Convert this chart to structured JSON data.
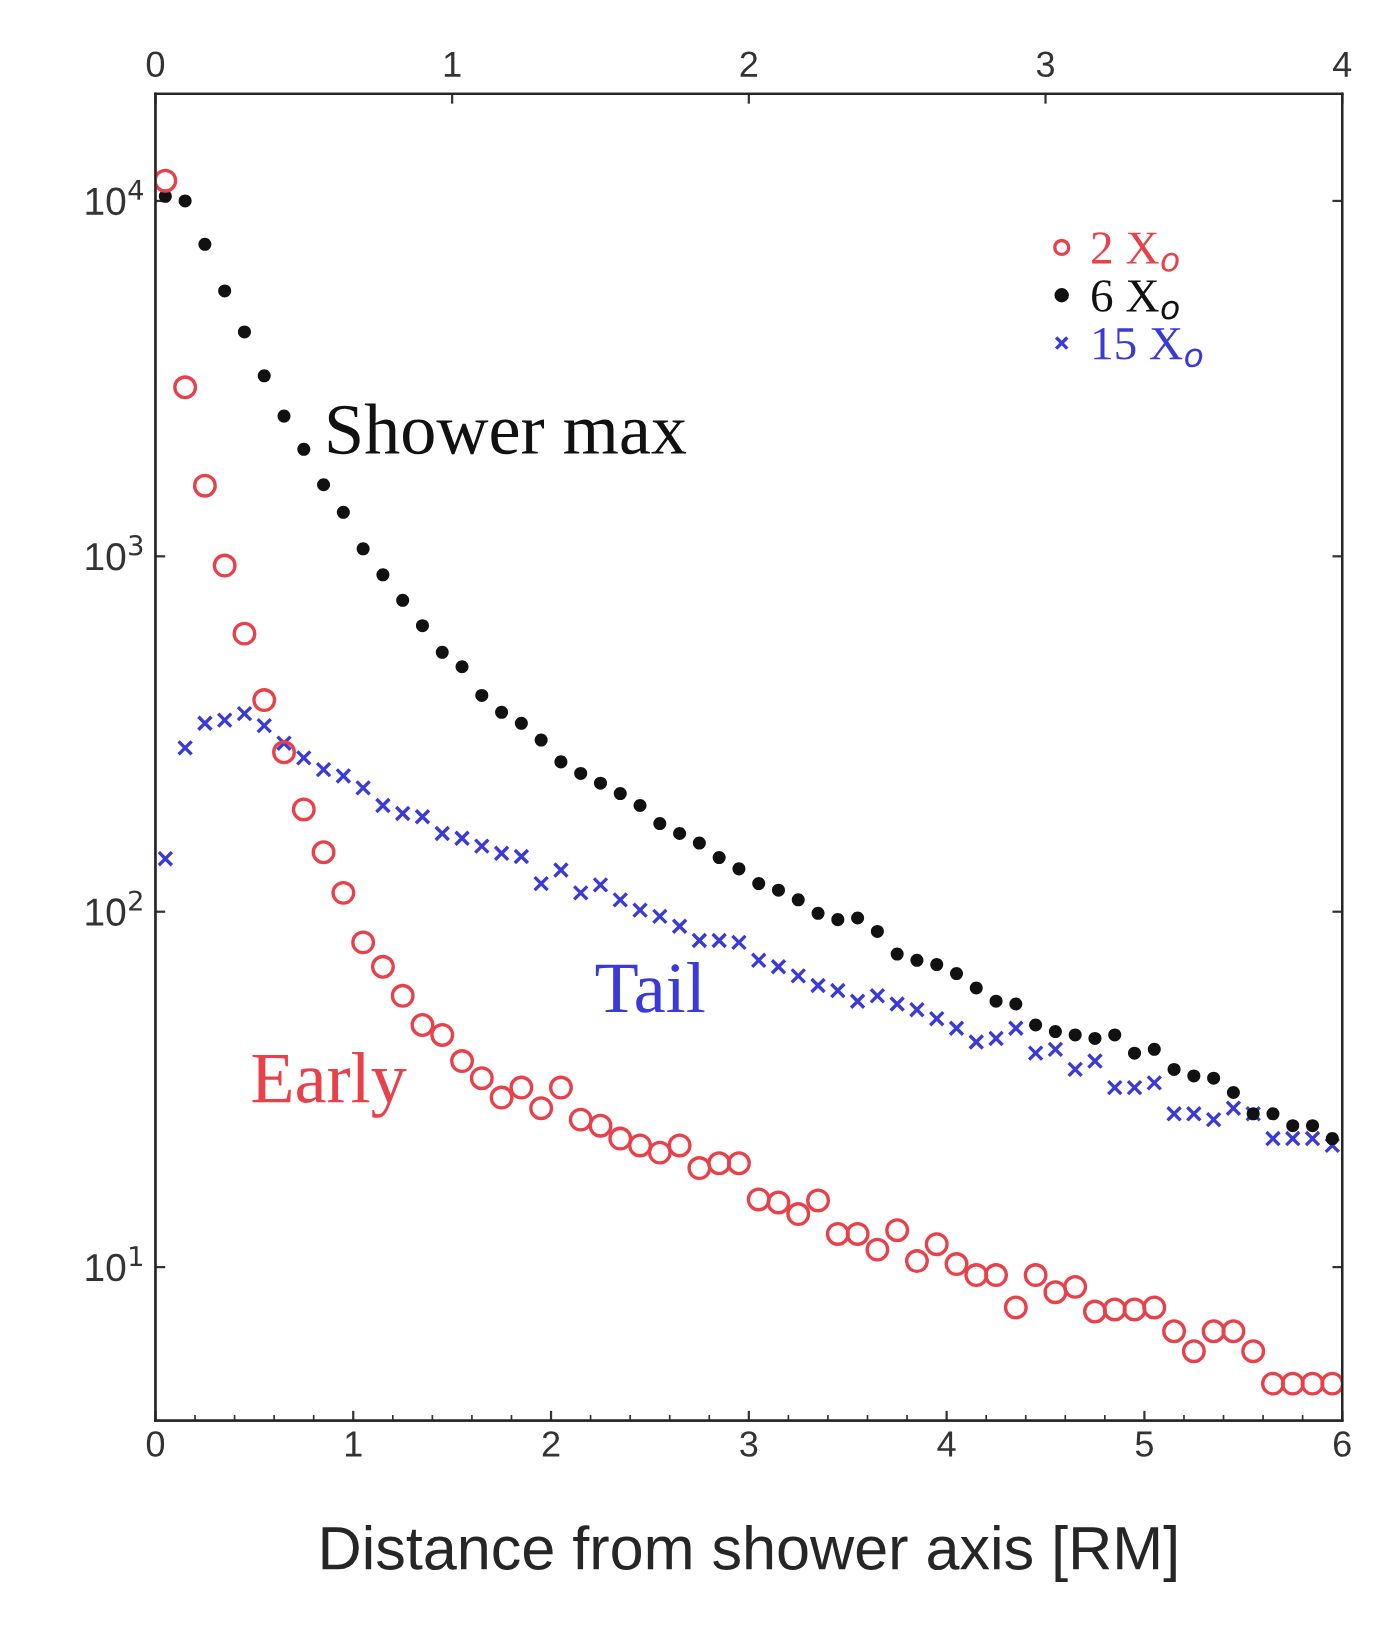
{
  "chart_data": {
    "type": "scatter",
    "xlabel": "Distance from shower axis [RM]",
    "x": [
      0.05,
      0.15,
      0.25,
      0.35,
      0.45,
      0.55,
      0.65,
      0.75,
      0.85,
      0.95,
      1.05,
      1.15,
      1.25,
      1.35,
      1.45,
      1.55,
      1.65,
      1.75,
      1.85,
      1.95,
      2.05,
      2.15,
      2.25,
      2.35,
      2.45,
      2.55,
      2.65,
      2.75,
      2.85,
      2.95,
      3.05,
      3.15,
      3.25,
      3.35,
      3.45,
      3.55,
      3.65,
      3.75,
      3.85,
      3.95,
      4.05,
      4.15,
      4.25,
      4.35,
      4.45,
      4.55,
      4.65,
      4.75,
      4.85,
      4.95,
      5.05,
      5.15,
      5.25,
      5.35,
      5.45,
      5.55,
      5.65,
      5.75,
      5.85,
      5.95
    ],
    "series": [
      {
        "name": "2 X$_{o}$",
        "color": "#e8414a",
        "marker": "circle",
        "values": [
          11400,
          2990,
          1580,
          942,
          606,
          394,
          281,
          194,
          147,
          113,
          82,
          70,
          58,
          48,
          45,
          38,
          34,
          30,
          32,
          28,
          32,
          26,
          25,
          23,
          22,
          21,
          22,
          19,
          19.6,
          19.6,
          15.5,
          15.2,
          14.1,
          15.4,
          12.4,
          12.4,
          11.2,
          12.7,
          10.4,
          11.6,
          10.2,
          9.5,
          9.5,
          7.7,
          9.5,
          8.5,
          8.8,
          7.5,
          7.6,
          7.6,
          7.7,
          6.6,
          5.8,
          6.6,
          6.6,
          5.8,
          4.7,
          4.7,
          4.7,
          4.7
        ]
      },
      {
        "name": "6 X$_{o}$",
        "color": "#111111",
        "marker": "dot",
        "values": [
          10300,
          10000,
          7550,
          5580,
          4280,
          3220,
          2480,
          2000,
          1590,
          1330,
          1050,
          887,
          752,
          638,
          537,
          489,
          406,
          364,
          339,
          304,
          264,
          245,
          230,
          215,
          199,
          177,
          166,
          156,
          142,
          132,
          120,
          115,
          108,
          99,
          95,
          96,
          88,
          76,
          73,
          71,
          67,
          61,
          56,
          55,
          48,
          46,
          45,
          44,
          45,
          40,
          41,
          36,
          34.5,
          34,
          31,
          27,
          27,
          25,
          25,
          23
        ]
      },
      {
        "name": "15 X$_{o}$",
        "color": "#3a3ad8",
        "marker": "cross",
        "values": [
          141,
          289,
          339,
          346,
          361,
          334,
          298,
          271,
          251,
          241,
          223,
          199,
          189,
          185,
          166,
          161,
          153,
          146,
          143,
          120,
          131,
          113,
          119,
          108,
          101,
          97,
          91,
          83,
          83,
          82,
          73,
          70,
          66,
          62,
          60,
          56,
          58,
          55,
          53,
          50,
          47,
          43,
          44,
          47,
          40,
          41,
          36,
          38,
          32,
          32,
          33,
          27,
          27,
          26,
          28,
          27,
          23,
          23,
          23,
          22
        ]
      }
    ],
    "log": "y",
    "xlim": [
      0,
      6
    ],
    "xticks": [
      0,
      1,
      2,
      3,
      4,
      5,
      6
    ],
    "x2lim": [
      0,
      4
    ],
    "x2ticks": [
      0,
      1,
      2,
      3,
      4
    ],
    "ylim": [
      3.7,
      20000
    ],
    "yticks": [
      {
        "value": 10,
        "label": "10$^{1}$"
      },
      {
        "value": 100,
        "label": "10$^{2}$"
      },
      {
        "value": 1000,
        "label": "10$^{3}$"
      },
      {
        "value": 10000,
        "label": "10$^{4}$"
      }
    ],
    "annotations": [
      "Early",
      "Shower max",
      "Tail"
    ],
    "grid": false,
    "legend": "top right"
  }
}
